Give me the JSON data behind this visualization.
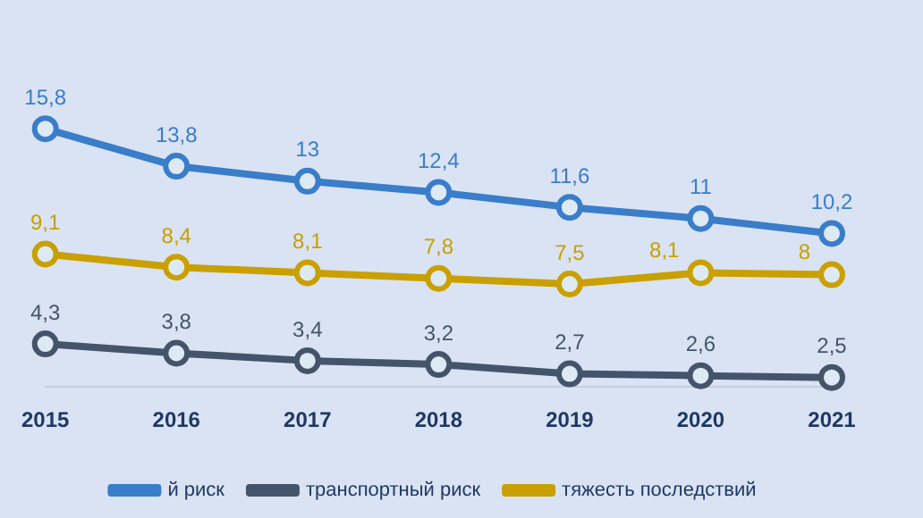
{
  "chart_data": {
    "type": "line",
    "categories": [
      "2015",
      "2016",
      "2017",
      "2018",
      "2019",
      "2020",
      "2021"
    ],
    "series": [
      {
        "name": "й риск",
        "color": "#3a7dc9",
        "values": [
          15.8,
          13.8,
          13,
          12.4,
          11.6,
          11,
          10.2
        ],
        "value_labels": [
          "15,8",
          "13,8",
          "13",
          "12,4",
          "11,6",
          "11",
          "10,2"
        ]
      },
      {
        "name": "транспортный риск",
        "color": "#44546a",
        "values": [
          4.3,
          3.8,
          3.4,
          3.2,
          2.7,
          2.6,
          2.5
        ],
        "value_labels": [
          "4,3",
          "3,8",
          "3,4",
          "3,2",
          "2,7",
          "2,6",
          "2,5"
        ]
      },
      {
        "name": "тяжесть последствий",
        "color": "#c9a000",
        "values": [
          9.1,
          8.4,
          8.1,
          7.8,
          7.5,
          8.1,
          8
        ],
        "value_labels": [
          "9,1",
          "8,4",
          "8,1",
          "7,8",
          "7,5",
          "8,1",
          "8"
        ]
      }
    ],
    "marker": "circle",
    "legend": "bottom",
    "grid": false,
    "tick_labels": "x"
  }
}
